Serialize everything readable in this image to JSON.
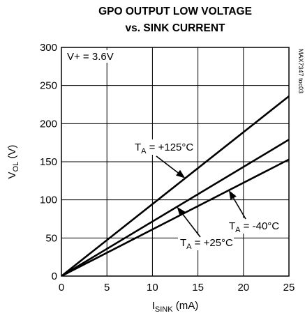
{
  "chart_data": {
    "type": "line",
    "title": [
      "GPO OUTPUT LOW VOLTAGE",
      "vs. SINK CURRENT"
    ],
    "xlabel": {
      "main": "I",
      "sub": "SINK",
      "unit": " (mA)"
    },
    "ylabel": {
      "main": "V",
      "sub": "OL",
      "unit": " (V)"
    },
    "xlim": [
      0,
      25
    ],
    "ylim": [
      0,
      300
    ],
    "xticks": [
      0,
      5,
      10,
      15,
      20,
      25
    ],
    "yticks": [
      0,
      50,
      100,
      150,
      200,
      250,
      300
    ],
    "grid": true,
    "annotations": {
      "supply": "V+ = 3.6V",
      "part_code": "MAX7347 toc03"
    },
    "series": [
      {
        "x": [
          0,
          25
        ],
        "y": [
          0,
          236
        ],
        "label": {
          "main": "T",
          "sub": "A",
          "rest": " = +125°C"
        }
      },
      {
        "x": [
          0,
          25
        ],
        "y": [
          0,
          179
        ],
        "label": {
          "main": "T",
          "sub": "A",
          "rest": " = +25°C"
        }
      },
      {
        "x": [
          0,
          25
        ],
        "y": [
          0,
          153
        ],
        "label": {
          "main": "T",
          "sub": "A",
          "rest": " = -40°C"
        }
      }
    ]
  }
}
